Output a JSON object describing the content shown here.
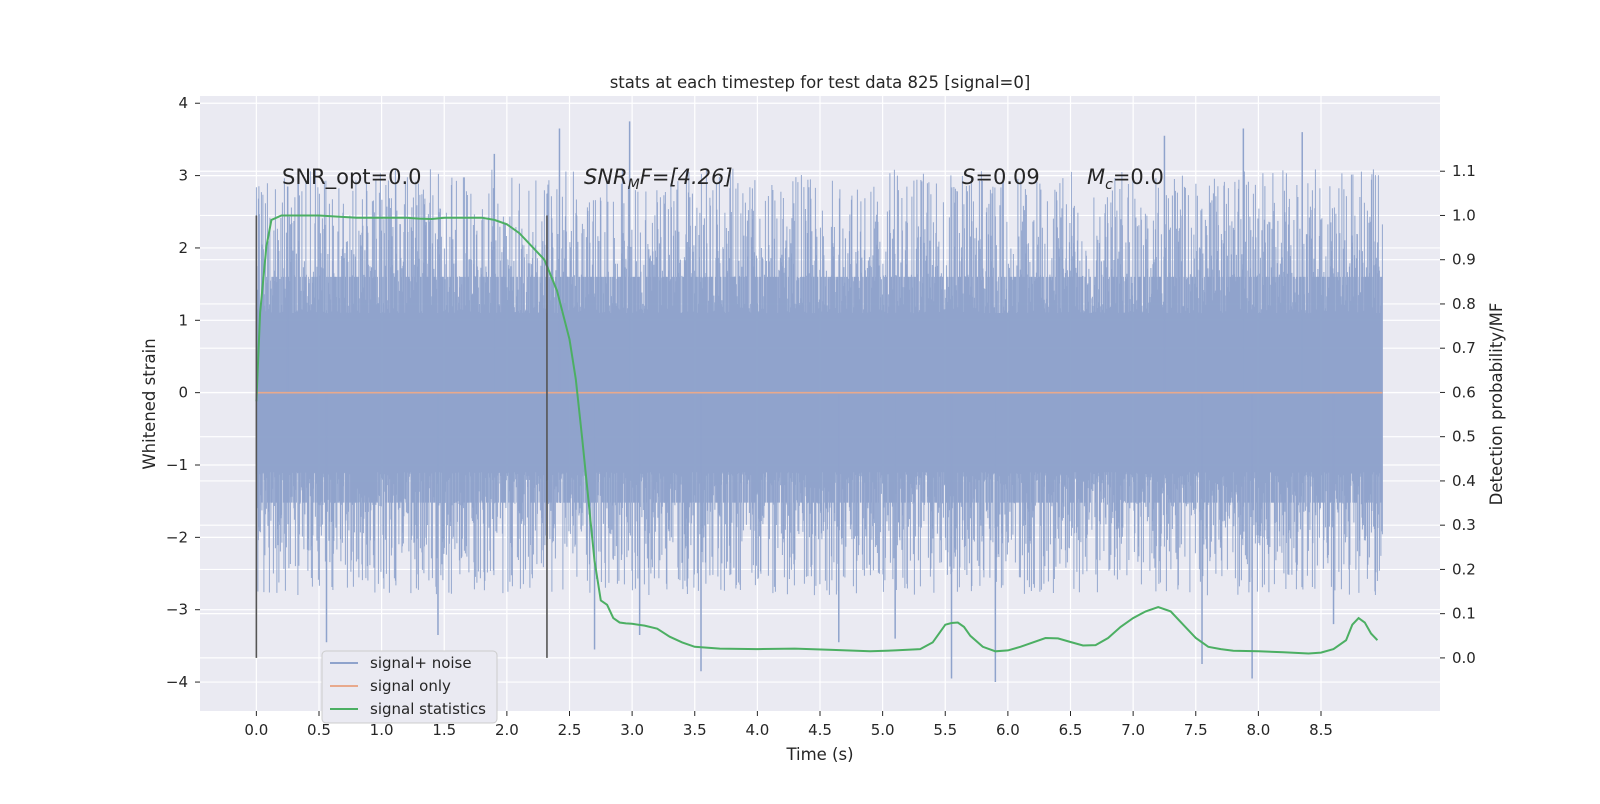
{
  "chart_data": {
    "type": "line",
    "title": "stats at each timestep for test data 825 [signal=0]",
    "xlabel": "Time (s)",
    "ylabel": "Whitened strain",
    "y2label": "Detection probability/MF",
    "xlim": [
      -0.45,
      9.45
    ],
    "ylim": [
      -4.4,
      4.1
    ],
    "y2lim": [
      -0.12,
      1.27
    ],
    "x_ticks": [
      "0.0",
      "0.5",
      "1.0",
      "1.5",
      "2.0",
      "2.5",
      "3.0",
      "3.5",
      "4.0",
      "4.5",
      "5.0",
      "5.5",
      "6.0",
      "6.5",
      "7.0",
      "7.5",
      "8.0",
      "8.5"
    ],
    "y_ticks": [
      "4",
      "3",
      "2",
      "1",
      "0",
      "−1",
      "−2",
      "−3",
      "−4"
    ],
    "y2_ticks": [
      "1.1",
      "1.0",
      "0.9",
      "0.8",
      "0.7",
      "0.6",
      "0.5",
      "0.4",
      "0.3",
      "0.2",
      "0.1",
      "0.0"
    ],
    "grid": true,
    "legend_position": "lower-left",
    "annotations": {
      "snr_opt": "SNR_opt=0.0",
      "snr_mf_main": "SNR",
      "snr_mf_sub": "M",
      "snr_mf_rest": "F=[4.26]",
      "s_main": "S",
      "s_rest": "=0.09",
      "mc_main": "M",
      "mc_sub": "c",
      "mc_rest": "=0.0"
    },
    "vertical_markers_x": [
      0.0,
      2.32
    ],
    "series": [
      {
        "name": "signal+ noise",
        "color": "#8fa3cc",
        "x_range": [
          0.0,
          8.99
        ],
        "noise": {
          "core_amplitude": 1.6,
          "typical_range": [
            -2.3,
            2.5
          ],
          "extremes": [
            -4.0,
            3.75
          ]
        },
        "peaks": [
          [
            0.56,
            -3.45
          ],
          [
            0.25,
            2.85
          ],
          [
            1.45,
            -3.35
          ],
          [
            1.9,
            3.3
          ],
          [
            2.42,
            3.65
          ],
          [
            2.7,
            -3.55
          ],
          [
            2.98,
            3.75
          ],
          [
            3.06,
            -3.35
          ],
          [
            3.55,
            -3.85
          ],
          [
            4.65,
            -3.45
          ],
          [
            5.1,
            -3.4
          ],
          [
            5.55,
            -3.95
          ],
          [
            5.9,
            -4.0
          ],
          [
            7.25,
            3.55
          ],
          [
            7.55,
            -3.75
          ],
          [
            7.88,
            3.65
          ],
          [
            7.95,
            -3.95
          ],
          [
            8.35,
            3.6
          ],
          [
            8.6,
            -3.2
          ]
        ]
      },
      {
        "name": "signal only",
        "color": "#e8a98c",
        "x": [
          0.0,
          8.99
        ],
        "y": [
          0.0,
          0.0
        ]
      },
      {
        "name": "signal statistics",
        "color": "#4caf63",
        "axis": "right",
        "x": [
          0.0,
          0.03,
          0.08,
          0.12,
          0.2,
          0.3,
          0.5,
          0.8,
          1.0,
          1.2,
          1.3,
          1.4,
          1.5,
          1.6,
          1.7,
          1.8,
          1.9,
          2.0,
          2.1,
          2.2,
          2.3,
          2.4,
          2.5,
          2.55,
          2.6,
          2.65,
          2.7,
          2.75,
          2.8,
          2.85,
          2.9,
          2.95,
          3.0,
          3.1,
          3.2,
          3.3,
          3.4,
          3.5,
          3.7,
          4.0,
          4.3,
          4.6,
          4.9,
          5.1,
          5.3,
          5.4,
          5.5,
          5.55,
          5.6,
          5.65,
          5.7,
          5.8,
          5.9,
          6.0,
          6.1,
          6.3,
          6.4,
          6.5,
          6.6,
          6.7,
          6.8,
          6.9,
          7.0,
          7.1,
          7.2,
          7.3,
          7.4,
          7.5,
          7.6,
          7.7,
          7.8,
          8.0,
          8.2,
          8.4,
          8.5,
          8.6,
          8.7,
          8.75,
          8.8,
          8.85,
          8.9,
          8.95
        ],
        "y": [
          0.58,
          0.78,
          0.93,
          0.99,
          1.0,
          1.0,
          1.0,
          0.995,
          0.995,
          0.995,
          0.993,
          0.992,
          0.995,
          0.995,
          0.995,
          0.995,
          0.99,
          0.98,
          0.96,
          0.93,
          0.9,
          0.83,
          0.72,
          0.63,
          0.5,
          0.36,
          0.22,
          0.13,
          0.12,
          0.09,
          0.08,
          0.078,
          0.077,
          0.073,
          0.066,
          0.048,
          0.035,
          0.025,
          0.021,
          0.02,
          0.021,
          0.018,
          0.015,
          0.017,
          0.02,
          0.035,
          0.075,
          0.079,
          0.08,
          0.07,
          0.05,
          0.025,
          0.015,
          0.017,
          0.025,
          0.045,
          0.044,
          0.036,
          0.028,
          0.029,
          0.045,
          0.07,
          0.09,
          0.105,
          0.115,
          0.105,
          0.075,
          0.045,
          0.025,
          0.02,
          0.016,
          0.015,
          0.013,
          0.01,
          0.012,
          0.02,
          0.04,
          0.075,
          0.09,
          0.08,
          0.055,
          0.04
        ]
      }
    ]
  }
}
